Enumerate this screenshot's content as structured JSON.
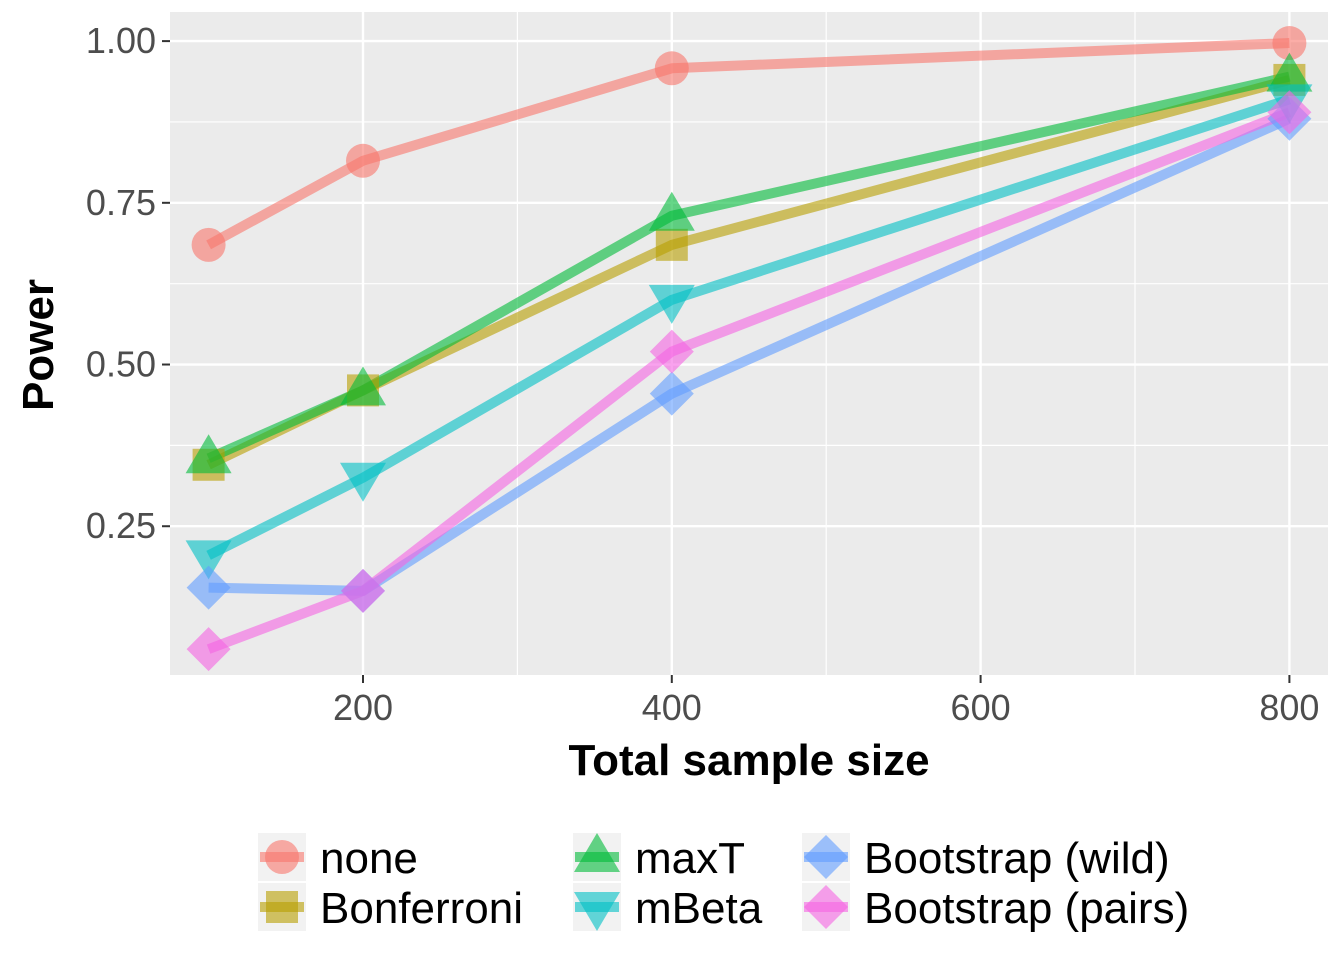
{
  "chart_data": {
    "type": "line",
    "title": "",
    "xlabel": "Total sample size",
    "ylabel": "Power",
    "xlim": [
      75,
      825
    ],
    "ylim": [
      0.02,
      1.045
    ],
    "xticks": [
      200,
      400,
      600,
      800
    ],
    "xtick_labels": [
      "200",
      "400",
      "600",
      "800"
    ],
    "yticks": [
      0.25,
      0.5,
      0.75,
      1.0
    ],
    "ytick_labels": [
      "0.25",
      "0.50",
      "0.75",
      "1.00"
    ],
    "grid": true,
    "legend_position": "bottom",
    "x": [
      100,
      200,
      400,
      800
    ],
    "series": [
      {
        "name": "none",
        "values": [
          0.685,
          0.815,
          0.958,
          0.997
        ],
        "color": "#F8766D",
        "marker": "circle"
      },
      {
        "name": "Bonferroni",
        "values": [
          0.345,
          0.46,
          0.685,
          0.94
        ],
        "color": "#B79F00",
        "marker": "square"
      },
      {
        "name": "maxT",
        "values": [
          0.355,
          0.46,
          0.73,
          0.945
        ],
        "color": "#00BA38",
        "marker": "triangle-up"
      },
      {
        "name": "mBeta",
        "values": [
          0.205,
          0.325,
          0.6,
          0.91
        ],
        "color": "#00BFC4",
        "marker": "triangle-down"
      },
      {
        "name": "Bootstrap (wild)",
        "values": [
          0.155,
          0.15,
          0.455,
          0.88
        ],
        "color": "#619CFF",
        "marker": "diamond"
      },
      {
        "name": "Bootstrap (pairs)",
        "values": [
          0.06,
          0.15,
          0.52,
          0.89
        ],
        "color": "#F564E3",
        "marker": "diamond"
      }
    ]
  }
}
